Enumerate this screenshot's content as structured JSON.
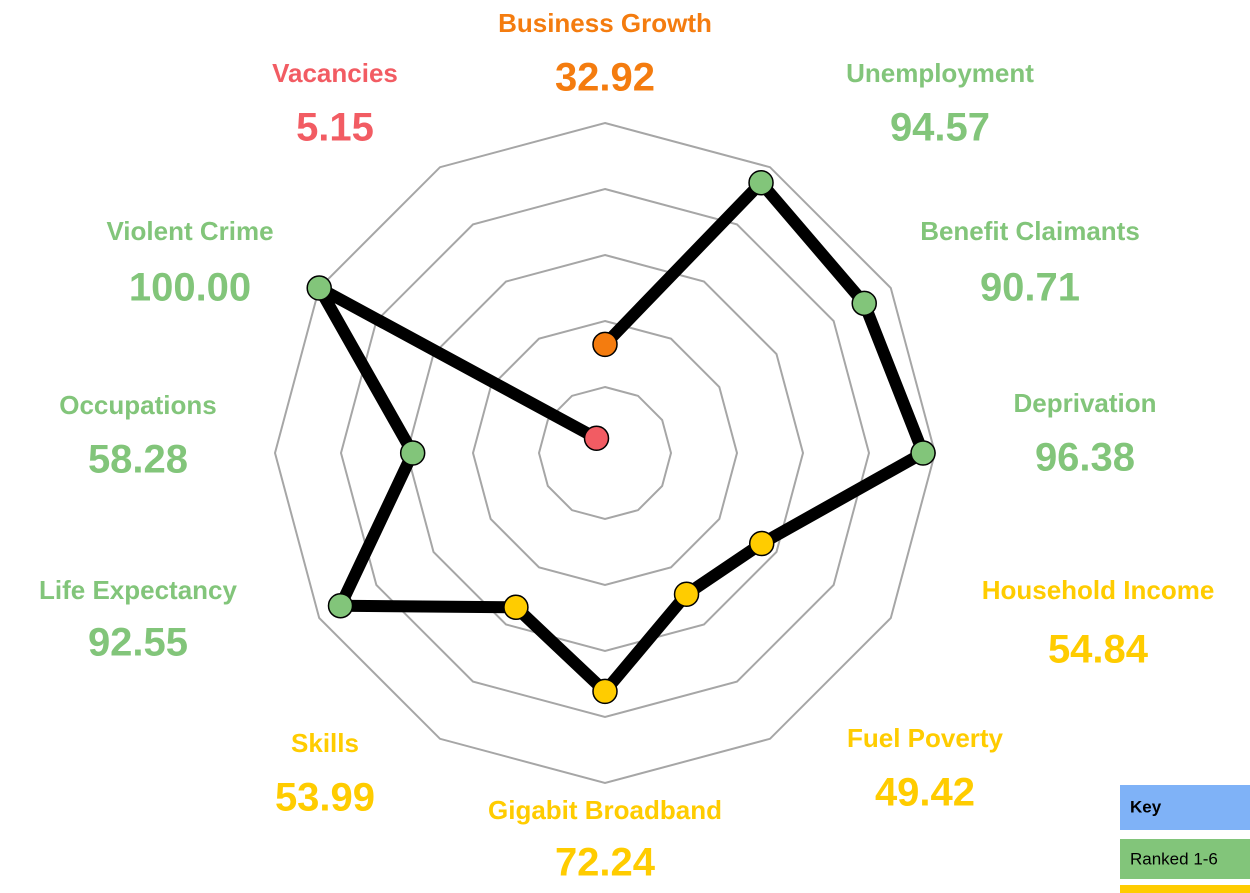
{
  "chart_data": {
    "type": "radar",
    "categories": [
      "Business Growth",
      "Unemployment",
      "Benefit Claimants",
      "Deprivation",
      "Household Income",
      "Fuel Poverty",
      "Gigabit Broadband",
      "Skills",
      "Life Expectancy",
      "Occupations",
      "Violent Crime",
      "Vacancies"
    ],
    "values": [
      32.92,
      94.57,
      90.71,
      96.38,
      54.84,
      49.42,
      72.24,
      53.99,
      92.55,
      58.28,
      100,
      5.15
    ],
    "value_labels": [
      "32.92",
      "94.57",
      "90.71",
      "96.38",
      "54.84",
      "49.42",
      "72.24",
      "53.99",
      "92.55",
      "58.28",
      "100.00",
      "5.15"
    ],
    "colors": [
      "#f47c0f",
      "#82c57a",
      "#82c57a",
      "#82c57a",
      "#ffcc00",
      "#ffcc00",
      "#ffcc00",
      "#ffcc00",
      "#82c57a",
      "#82c57a",
      "#82c57a",
      "#f25c63"
    ],
    "line_color": "#000000",
    "ylim": [
      0,
      100
    ],
    "yticks": [
      20,
      40,
      60,
      80,
      100
    ],
    "grid": true,
    "key": {
      "title": "Key",
      "title_color": "#7fb2f7",
      "rows": [
        {
          "label": "Ranked 1-6",
          "color": "#82c57a"
        },
        {
          "color": "#ffcc00"
        }
      ]
    }
  }
}
